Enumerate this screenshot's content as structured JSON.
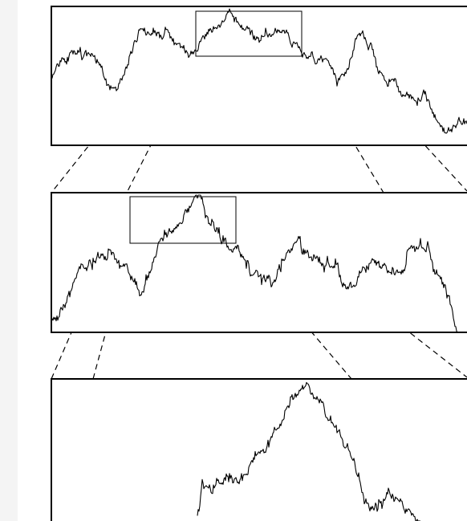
{
  "figure": {
    "panels": [
      {
        "id": "top",
        "zoom_window": [
          0.3105,
          0.5598
        ]
      },
      {
        "id": "middle",
        "zoom_window": [
          0.1901,
          0.4235
        ]
      },
      {
        "id": "bottom"
      }
    ],
    "ink_color": "#000000",
    "background_color": "#ffffff"
  }
}
